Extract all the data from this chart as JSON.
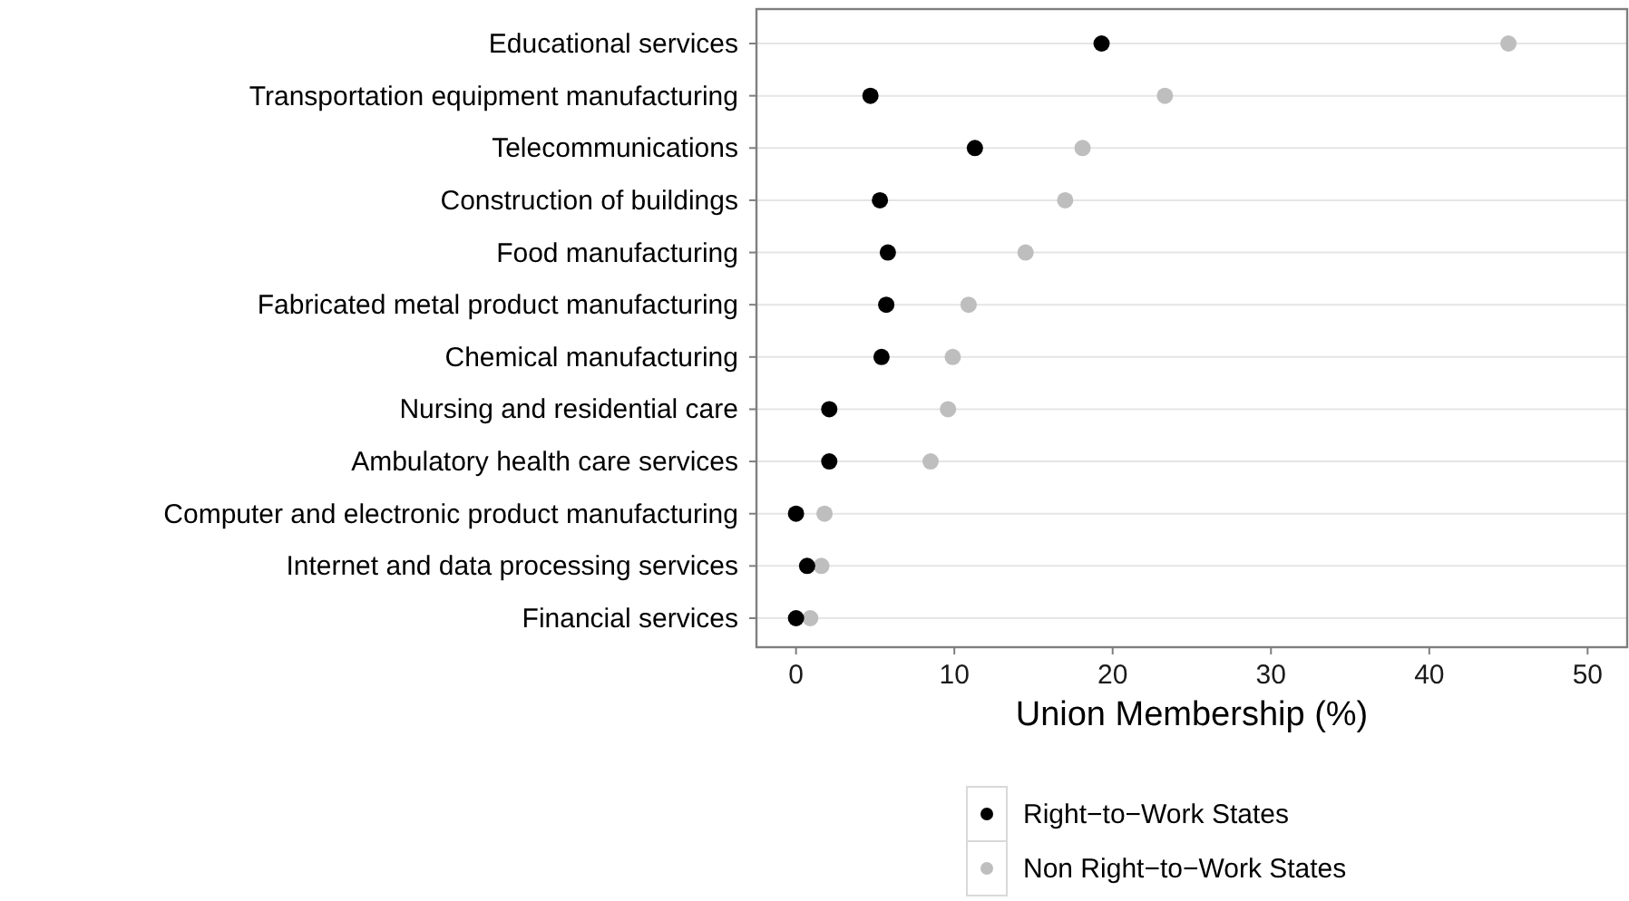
{
  "chart_data": {
    "type": "scatter",
    "xlabel": "Union Membership (%)",
    "categories": [
      "Educational services",
      "Transportation equipment manufacturing",
      "Telecommunications",
      "Construction of buildings",
      "Food manufacturing",
      "Fabricated metal product manufacturing",
      "Chemical manufacturing",
      "Nursing and residential care",
      "Ambulatory health care services",
      "Computer and electronic product manufacturing",
      "Internet and data processing services",
      "Financial services"
    ],
    "orientation": "horizontal",
    "xlim": [
      -2.5,
      52.5
    ],
    "xticks": [
      0,
      10,
      20,
      30,
      40,
      50
    ],
    "grid": "y",
    "legend": "bottom",
    "marker": "circle",
    "series": [
      {
        "name": "Non Right−to−Work States",
        "color": "#bebebe",
        "values": [
          45.0,
          23.3,
          18.1,
          17.0,
          14.5,
          10.9,
          9.9,
          9.6,
          8.5,
          1.8,
          1.6,
          0.9
        ]
      },
      {
        "name": "Right−to−Work States",
        "color": "#000000",
        "values": [
          19.3,
          4.7,
          11.3,
          5.3,
          5.8,
          5.7,
          5.4,
          2.1,
          2.1,
          0.0,
          0.7,
          0.0
        ]
      }
    ]
  }
}
